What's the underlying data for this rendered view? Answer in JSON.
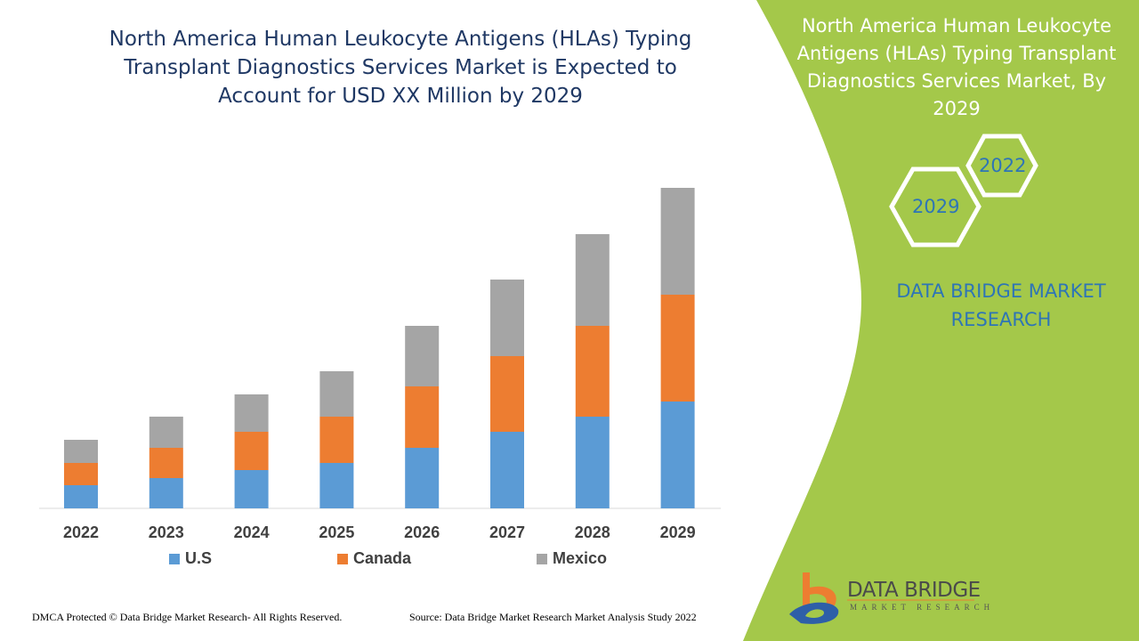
{
  "chart_data": {
    "type": "bar",
    "stacked": true,
    "title": "North America Human Leukocyte Antigens (HLAs) Typing Transplant Diagnostics Services Market is Expected to Account for USD XX Million by 2029",
    "categories": [
      "2022",
      "2023",
      "2024",
      "2025",
      "2026",
      "2027",
      "2028",
      "2029"
    ],
    "series": [
      {
        "name": "U.S",
        "color": "#5b9bd5",
        "values": [
          26,
          34,
          43,
          51,
          68,
          86,
          103,
          120
        ]
      },
      {
        "name": "Canada",
        "color": "#ed7d31",
        "values": [
          25,
          34,
          43,
          52,
          69,
          85,
          102,
          120
        ]
      },
      {
        "name": "Mexico",
        "color": "#a5a5a5",
        "values": [
          26,
          35,
          42,
          51,
          68,
          86,
          103,
          120
        ]
      }
    ],
    "ylim": [
      0,
      360
    ],
    "grid": false,
    "legend": "bottom",
    "xlabel": "",
    "ylabel": ""
  },
  "side_panel": {
    "title": "North America Human Leukocyte Antigens (HLAs) Typing Transplant Diagnostics Services Market, By 2029",
    "hex_years": [
      "2022",
      "2029"
    ],
    "brand": "DATA BRIDGE MARKET RESEARCH",
    "color": "#a4c84a"
  },
  "logo": {
    "name": "DATA BRIDGE",
    "tagline": "MARKET RESEARCH"
  },
  "footer": {
    "copyright": "DMCA Protected © Data Bridge Market Research- All Rights Reserved.",
    "source": "Source: Data Bridge Market Research Market Analysis Study 2022"
  }
}
